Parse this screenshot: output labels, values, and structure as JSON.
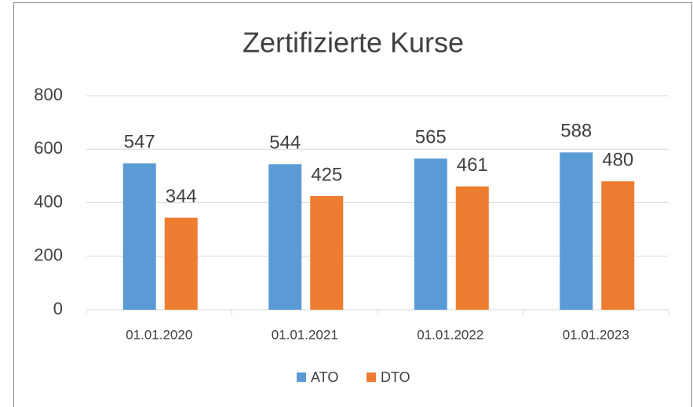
{
  "chart_data": {
    "type": "bar",
    "title": "Zertifizierte Kurse",
    "categories": [
      "01.01.2020",
      "01.01.2021",
      "01.01.2022",
      "01.01.2023"
    ],
    "series": [
      {
        "name": "ATO",
        "color": "#5b9bd5",
        "values": [
          547,
          544,
          565,
          588
        ]
      },
      {
        "name": "DTO",
        "color": "#ed7d31",
        "values": [
          344,
          425,
          461,
          480
        ]
      }
    ],
    "ylim": [
      0,
      800
    ],
    "yticks": [
      0,
      200,
      400,
      600,
      800
    ],
    "grid": true,
    "legend": "bottom"
  }
}
